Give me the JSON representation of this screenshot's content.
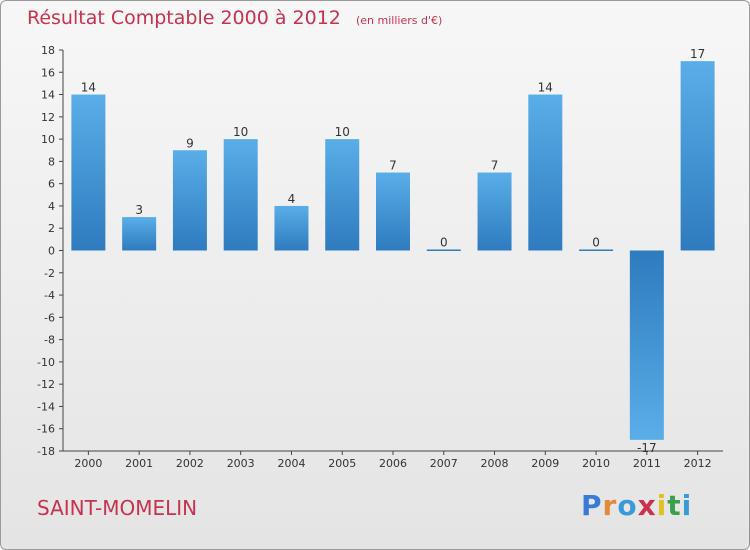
{
  "header": {
    "title": "Résultat Comptable 2000 à 2012",
    "unit": "(en milliers d'€)"
  },
  "footer": {
    "commune": "SAINT-MOMELIN",
    "logo_letters": [
      "P",
      "r",
      "o",
      "x",
      "i",
      "t",
      "i"
    ],
    "logo_colors": [
      "#3a7bd5",
      "#e2893a",
      "#3a9ad5",
      "#c8324f",
      "#e0c21e",
      "#3aa04a",
      "#3a9ad5"
    ]
  },
  "chart_data": {
    "type": "bar",
    "title": "Résultat Comptable 2000 à 2012",
    "subtitle": "(en milliers d'€)",
    "xlabel": "",
    "ylabel": "",
    "categories": [
      "2000",
      "2001",
      "2002",
      "2003",
      "2004",
      "2005",
      "2006",
      "2007",
      "2008",
      "2009",
      "2010",
      "2011",
      "2012"
    ],
    "values": [
      14,
      3,
      9,
      10,
      4,
      10,
      7,
      0,
      7,
      14,
      0,
      -17,
      17
    ],
    "ylim": [
      -18,
      18
    ],
    "yticks": [
      18,
      16,
      14,
      12,
      10,
      8,
      6,
      4,
      2,
      0,
      -2,
      -4,
      -6,
      -8,
      -10,
      -12,
      -14,
      -16,
      -18
    ],
    "grid": false,
    "bar_color_top": "#5aaee8",
    "bar_color_bottom": "#2e7bbf"
  }
}
